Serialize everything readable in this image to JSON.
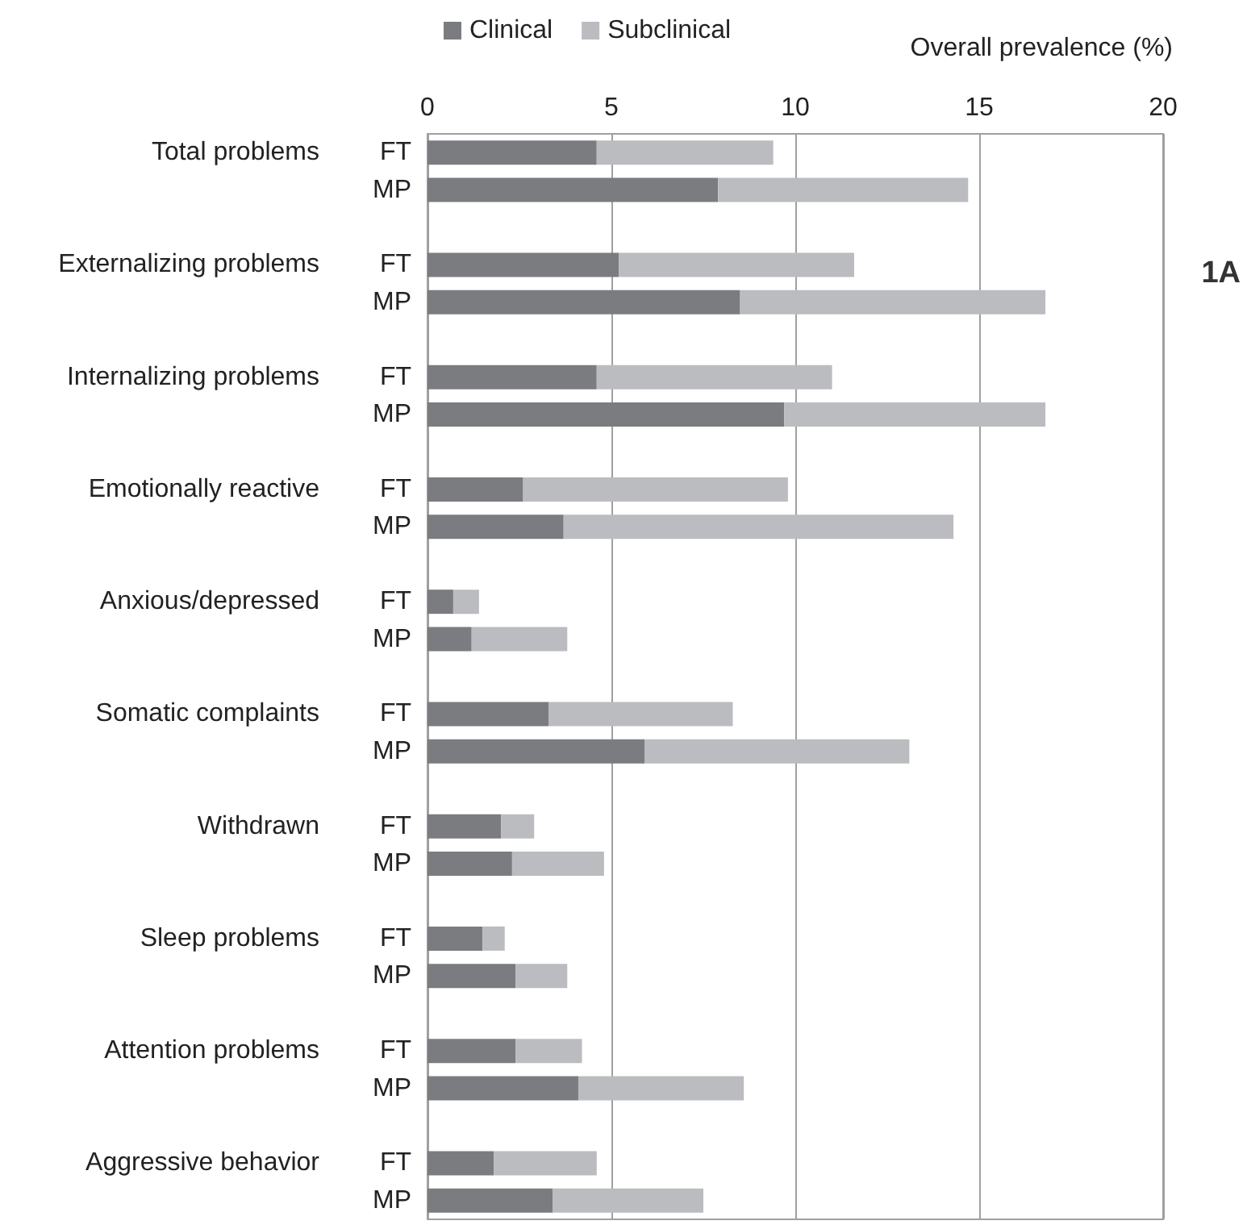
{
  "chart_data": {
    "type": "bar",
    "orientation": "horizontal",
    "stacked": true,
    "xlabel": "Overall prevalence (%)",
    "categories": [
      "FT",
      "MP",
      "FT",
      "MP",
      "FT",
      "MP",
      "FT",
      "MP",
      "FT",
      "MP",
      "FT",
      "MP",
      "FT",
      "MP",
      "FT",
      "MP",
      "FT",
      "MP",
      "FT",
      "MP"
    ],
    "series": [
      {
        "name": "Clinical",
        "color": "#7b7c80",
        "values": [
          4.6,
          7.9,
          5.2,
          8.5,
          4.6,
          9.7,
          2.6,
          3.7,
          0.7,
          1.2,
          3.3,
          5.9,
          2.0,
          2.3,
          1.5,
          2.4,
          2.4,
          4.1,
          1.8,
          3.4
        ]
      },
      {
        "name": "Subclinical",
        "color": "#bbbcc0",
        "values": [
          4.8,
          6.8,
          6.4,
          8.3,
          6.4,
          7.1,
          7.2,
          10.6,
          0.7,
          2.6,
          5.0,
          7.2,
          0.9,
          2.5,
          0.6,
          1.4,
          1.8,
          4.5,
          2.8,
          4.1
        ]
      }
    ],
    "xlim": [
      0,
      20
    ],
    "xticks": [
      0,
      5,
      10,
      15,
      20
    ],
    "grid": "x",
    "legend": "top",
    "annotations": [
      "Total problems",
      "Externalizing problems",
      "Internalizing problems",
      "Emotionally reactive",
      "Anxious/depressed",
      "Somatic complaints",
      "Withdrawn",
      "Sleep problems",
      "Attention problems",
      "Aggressive behavior",
      "1A"
    ]
  }
}
